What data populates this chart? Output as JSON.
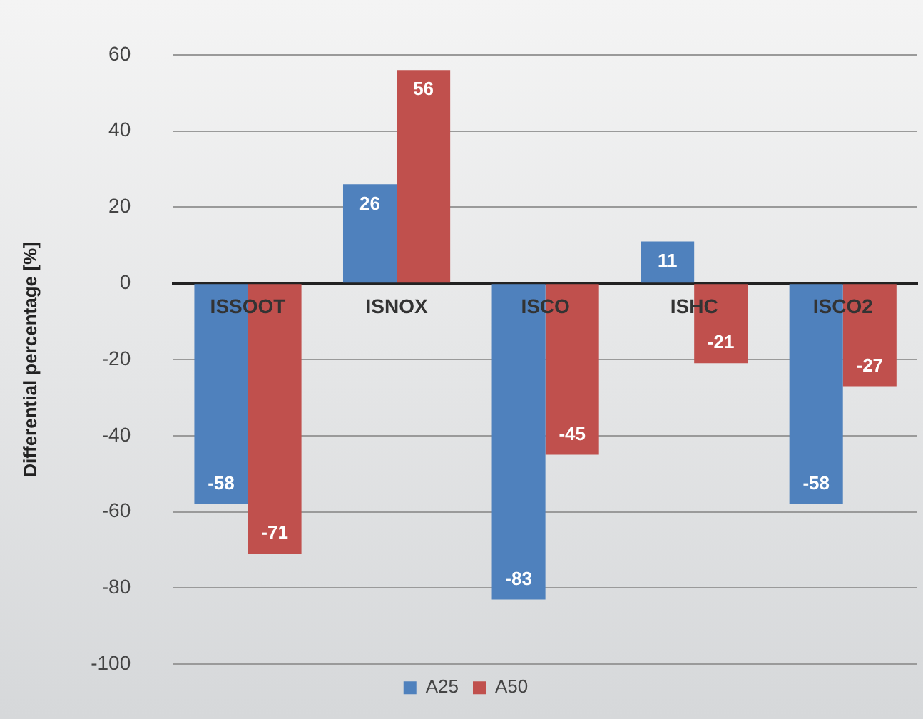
{
  "chart_data": {
    "type": "bar",
    "ylabel": "Differential percentage [%]",
    "categories": [
      "ISSOOT",
      "ISNOX",
      "ISCO",
      "ISHC",
      "ISCO2"
    ],
    "series": [
      {
        "name": "A25",
        "color": "#4f81bd",
        "values": [
          -58,
          26,
          -83,
          11,
          -58
        ]
      },
      {
        "name": "A50",
        "color": "#c0504d",
        "values": [
          -71,
          56,
          -45,
          -21,
          -27
        ]
      }
    ],
    "ylim": [
      -100,
      60
    ],
    "yticks": [
      -100,
      -80,
      -60,
      -40,
      -20,
      0,
      20,
      40,
      60
    ],
    "grid": "y",
    "legend": "bottom",
    "data_labels": true
  }
}
